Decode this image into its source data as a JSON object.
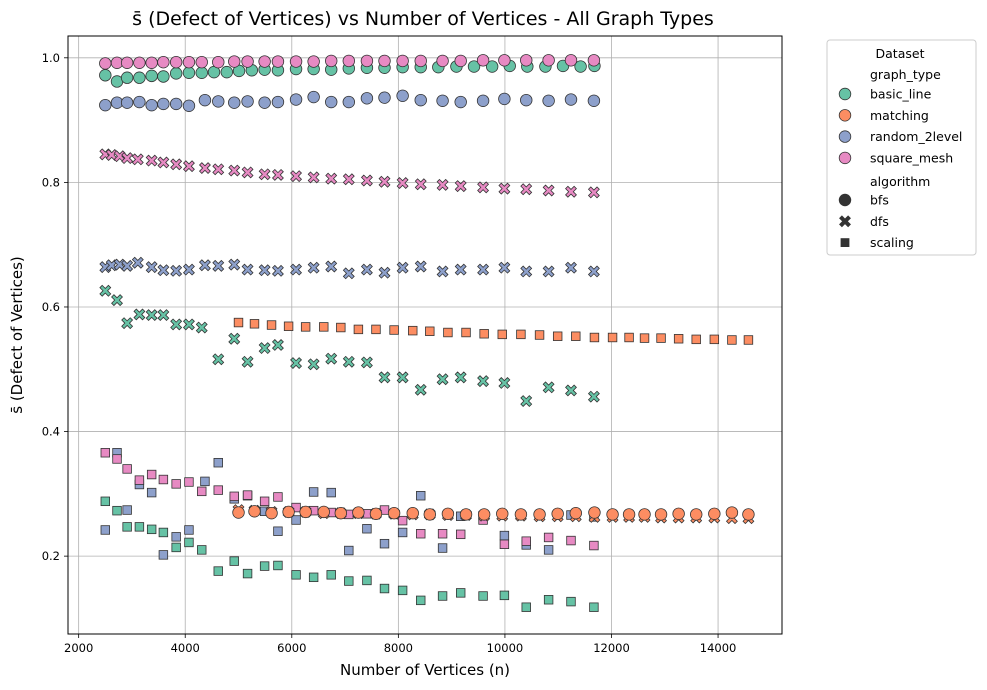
{
  "chart_data": {
    "type": "scatter",
    "title": "s̄ (Defect of Vertices) vs Number of Vertices - All Graph Types",
    "xlabel": "Number of Vertices (n)",
    "ylabel": "s̄ (Defect of Vertices)",
    "xlim": [
      1800,
      15200
    ],
    "ylim": [
      0.075,
      1.035
    ],
    "xticks": [
      2000,
      4000,
      6000,
      8000,
      10000,
      12000,
      14000
    ],
    "xtick_labels": [
      "2000",
      "4000",
      "6000",
      "8000",
      "10000",
      "12000",
      "14000"
    ],
    "yticks": [
      0.2,
      0.4,
      0.6,
      0.8,
      1.0
    ],
    "ytick_labels": [
      "0.2",
      "0.4",
      "0.6",
      "0.8",
      "1.0"
    ],
    "grid": true,
    "legend": {
      "title": "Dataset",
      "placement": "outside-top-right",
      "hue_title": "graph_type",
      "hue_entries": [
        {
          "label": "basic_line",
          "color": "#66c2a5"
        },
        {
          "label": "matching",
          "color": "#fc8d62"
        },
        {
          "label": "random_2level",
          "color": "#8da0cb"
        },
        {
          "label": "square_mesh",
          "color": "#e78ac3"
        }
      ],
      "style_title": "algorithm",
      "style_entries": [
        {
          "label": "bfs",
          "marker": "circle"
        },
        {
          "label": "dfs",
          "marker": "x"
        },
        {
          "label": "scaling",
          "marker": "square"
        }
      ]
    },
    "series": [
      {
        "graph_type": "basic_line",
        "algorithm": "bfs",
        "color": "#66c2a5",
        "marker": "circle",
        "x": [
          2500,
          2720,
          2910,
          3140,
          3370,
          3590,
          3830,
          4070,
          4310,
          4540,
          4780,
          5010,
          5250,
          5490,
          5740,
          6080,
          6410,
          6740,
          7070,
          7410,
          7740,
          8080,
          8420,
          8750,
          9090,
          9420,
          9760,
          10090,
          10420,
          10760,
          11090,
          11420,
          11680
        ],
        "y": [
          0.972,
          0.962,
          0.968,
          0.968,
          0.971,
          0.97,
          0.975,
          0.976,
          0.976,
          0.977,
          0.977,
          0.979,
          0.98,
          0.981,
          0.98,
          0.982,
          0.982,
          0.981,
          0.983,
          0.984,
          0.984,
          0.985,
          0.985,
          0.985,
          0.986,
          0.986,
          0.986,
          0.987,
          0.986,
          0.986,
          0.987,
          0.986,
          0.987
        ]
      },
      {
        "graph_type": "basic_line",
        "algorithm": "dfs",
        "color": "#66c2a5",
        "marker": "x",
        "x": [
          2500,
          2720,
          2910,
          3140,
          3370,
          3590,
          3830,
          4070,
          4310,
          4620,
          4920,
          5170,
          5490,
          5740,
          6080,
          6410,
          6740,
          7070,
          7410,
          7740,
          8080,
          8420,
          8830,
          9170,
          9590,
          9990,
          10400,
          10820,
          11240,
          11670
        ],
        "y": [
          0.626,
          0.611,
          0.574,
          0.588,
          0.587,
          0.587,
          0.572,
          0.572,
          0.567,
          0.516,
          0.549,
          0.512,
          0.534,
          0.539,
          0.51,
          0.508,
          0.517,
          0.512,
          0.511,
          0.487,
          0.487,
          0.467,
          0.484,
          0.487,
          0.481,
          0.478,
          0.449,
          0.471,
          0.466,
          0.456
        ]
      },
      {
        "graph_type": "basic_line",
        "algorithm": "scaling",
        "color": "#66c2a5",
        "marker": "square",
        "x": [
          2500,
          2720,
          2910,
          3140,
          3370,
          3590,
          3830,
          4070,
          4310,
          4620,
          4920,
          5170,
          5490,
          5740,
          6080,
          6410,
          6740,
          7070,
          7410,
          7740,
          8080,
          8420,
          8830,
          9170,
          9590,
          9990,
          10400,
          10820,
          11240,
          11670
        ],
        "y": [
          0.288,
          0.273,
          0.247,
          0.247,
          0.243,
          0.238,
          0.214,
          0.222,
          0.21,
          0.176,
          0.192,
          0.172,
          0.184,
          0.185,
          0.17,
          0.166,
          0.17,
          0.16,
          0.161,
          0.148,
          0.145,
          0.129,
          0.136,
          0.141,
          0.136,
          0.137,
          0.118,
          0.13,
          0.127,
          0.118
        ]
      },
      {
        "graph_type": "matching",
        "algorithm": "bfs",
        "color": "#fc8d62",
        "marker": "circle",
        "x": [
          5000,
          5300,
          5620,
          5940,
          6260,
          6600,
          6920,
          7250,
          7580,
          7920,
          8270,
          8590,
          8930,
          9270,
          9610,
          9950,
          10300,
          10650,
          10990,
          11330,
          11680,
          12020,
          12330,
          12620,
          12930,
          13260,
          13590,
          13930,
          14260,
          14570
        ],
        "y": [
          0.27,
          0.272,
          0.269,
          0.271,
          0.271,
          0.271,
          0.269,
          0.27,
          0.268,
          0.269,
          0.269,
          0.267,
          0.268,
          0.267,
          0.267,
          0.268,
          0.267,
          0.267,
          0.268,
          0.269,
          0.27,
          0.267,
          0.267,
          0.267,
          0.267,
          0.268,
          0.267,
          0.268,
          0.27,
          0.267
        ]
      },
      {
        "graph_type": "matching",
        "algorithm": "dfs",
        "color": "#fc8d62",
        "marker": "x",
        "x": [
          5000,
          5300,
          5620,
          5940,
          6260,
          6600,
          6920,
          7250,
          7580,
          7920,
          8270,
          8590,
          8930,
          9270,
          9610,
          9950,
          10300,
          10650,
          10990,
          11330,
          11680,
          12020,
          12330,
          12620,
          12930,
          13260,
          13590,
          13930,
          14260,
          14570
        ],
        "y": [
          0.274,
          0.273,
          0.271,
          0.271,
          0.271,
          0.269,
          0.269,
          0.269,
          0.268,
          0.268,
          0.267,
          0.267,
          0.266,
          0.266,
          0.265,
          0.265,
          0.265,
          0.264,
          0.264,
          0.264,
          0.263,
          0.263,
          0.263,
          0.263,
          0.262,
          0.262,
          0.262,
          0.262,
          0.261,
          0.261
        ]
      },
      {
        "graph_type": "matching",
        "algorithm": "scaling",
        "color": "#fc8d62",
        "marker": "square",
        "x": [
          5000,
          5300,
          5620,
          5940,
          6260,
          6600,
          6920,
          7250,
          7580,
          7920,
          8270,
          8590,
          8930,
          9270,
          9610,
          9950,
          10300,
          10650,
          10990,
          11330,
          11680,
          12020,
          12330,
          12620,
          12930,
          13260,
          13590,
          13930,
          14260,
          14570
        ],
        "y": [
          0.575,
          0.573,
          0.571,
          0.569,
          0.568,
          0.568,
          0.567,
          0.564,
          0.564,
          0.563,
          0.562,
          0.561,
          0.559,
          0.559,
          0.557,
          0.556,
          0.556,
          0.555,
          0.553,
          0.553,
          0.551,
          0.551,
          0.551,
          0.55,
          0.55,
          0.549,
          0.548,
          0.548,
          0.547,
          0.547
        ]
      },
      {
        "graph_type": "random_2level",
        "algorithm": "bfs",
        "color": "#8da0cb",
        "marker": "circle",
        "x": [
          2500,
          2720,
          2910,
          3140,
          3370,
          3590,
          3830,
          4070,
          4370,
          4620,
          4920,
          5170,
          5490,
          5740,
          6080,
          6410,
          6740,
          7070,
          7410,
          7740,
          8080,
          8420,
          8830,
          9170,
          9590,
          9990,
          10400,
          10820,
          11240,
          11670
        ],
        "y": [
          0.924,
          0.928,
          0.928,
          0.929,
          0.924,
          0.926,
          0.926,
          0.923,
          0.932,
          0.93,
          0.928,
          0.93,
          0.928,
          0.929,
          0.933,
          0.937,
          0.929,
          0.929,
          0.935,
          0.936,
          0.939,
          0.932,
          0.931,
          0.929,
          0.931,
          0.934,
          0.932,
          0.931,
          0.933,
          0.931
        ]
      },
      {
        "graph_type": "random_2level",
        "algorithm": "dfs",
        "color": "#8da0cb",
        "marker": "x",
        "x": [
          2500,
          2620,
          2770,
          2910,
          3110,
          3370,
          3590,
          3830,
          4070,
          4370,
          4620,
          4920,
          5170,
          5490,
          5740,
          6080,
          6410,
          6740,
          7070,
          7410,
          7740,
          8080,
          8420,
          8830,
          9170,
          9590,
          9990,
          10400,
          10820,
          11240,
          11670
        ],
        "y": [
          0.664,
          0.667,
          0.668,
          0.666,
          0.671,
          0.664,
          0.659,
          0.658,
          0.66,
          0.667,
          0.666,
          0.668,
          0.66,
          0.659,
          0.658,
          0.66,
          0.663,
          0.665,
          0.654,
          0.66,
          0.655,
          0.663,
          0.665,
          0.657,
          0.66,
          0.66,
          0.663,
          0.657,
          0.657,
          0.663,
          0.657
        ]
      },
      {
        "graph_type": "random_2level",
        "algorithm": "scaling",
        "color": "#8da0cb",
        "marker": "square",
        "x": [
          2500,
          2720,
          2910,
          3140,
          3370,
          3590,
          3830,
          4070,
          4370,
          4620,
          4920,
          5170,
          5490,
          5740,
          6080,
          6410,
          6740,
          7070,
          7410,
          7740,
          8080,
          8420,
          8830,
          9170,
          9590,
          9990,
          10400,
          10820,
          11240,
          11670
        ],
        "y": [
          0.242,
          0.366,
          0.274,
          0.315,
          0.302,
          0.202,
          0.231,
          0.242,
          0.32,
          0.35,
          0.292,
          0.297,
          0.272,
          0.24,
          0.258,
          0.303,
          0.302,
          0.209,
          0.244,
          0.22,
          0.238,
          0.297,
          0.213,
          0.264,
          0.265,
          0.233,
          0.218,
          0.21,
          0.266,
          0.263
        ]
      },
      {
        "graph_type": "square_mesh",
        "algorithm": "bfs",
        "color": "#e78ac3",
        "marker": "circle",
        "x": [
          2500,
          2720,
          2910,
          3140,
          3370,
          3590,
          3830,
          4070,
          4310,
          4620,
          4920,
          5170,
          5490,
          5740,
          6080,
          6410,
          6740,
          7070,
          7410,
          7740,
          8080,
          8420,
          8830,
          9170,
          9590,
          9990,
          10400,
          10820,
          11240,
          11670
        ],
        "y": [
          0.991,
          0.992,
          0.992,
          0.992,
          0.992,
          0.993,
          0.993,
          0.993,
          0.993,
          0.993,
          0.994,
          0.994,
          0.994,
          0.994,
          0.994,
          0.994,
          0.995,
          0.995,
          0.995,
          0.995,
          0.995,
          0.995,
          0.995,
          0.995,
          0.996,
          0.996,
          0.996,
          0.996,
          0.996,
          0.996
        ]
      },
      {
        "graph_type": "square_mesh",
        "algorithm": "dfs",
        "color": "#e78ac3",
        "marker": "x",
        "x": [
          2500,
          2620,
          2770,
          2910,
          3110,
          3370,
          3590,
          3830,
          4070,
          4370,
          4620,
          4920,
          5170,
          5490,
          5740,
          6080,
          6410,
          6740,
          7070,
          7410,
          7740,
          8080,
          8420,
          8830,
          9170,
          9590,
          9990,
          10400,
          10820,
          11240,
          11670
        ],
        "y": [
          0.845,
          0.844,
          0.842,
          0.839,
          0.837,
          0.835,
          0.832,
          0.829,
          0.826,
          0.823,
          0.821,
          0.819,
          0.816,
          0.813,
          0.812,
          0.81,
          0.808,
          0.806,
          0.805,
          0.803,
          0.801,
          0.799,
          0.797,
          0.796,
          0.794,
          0.792,
          0.79,
          0.789,
          0.787,
          0.785,
          0.784
        ]
      },
      {
        "graph_type": "square_mesh",
        "algorithm": "scaling",
        "color": "#e78ac3",
        "marker": "square",
        "x": [
          2500,
          2720,
          2910,
          3140,
          3370,
          3590,
          3830,
          4070,
          4310,
          4620,
          4920,
          5170,
          5490,
          5740,
          6080,
          6410,
          6740,
          7070,
          7410,
          7740,
          8080,
          8420,
          8830,
          9170,
          9590,
          9990,
          10400,
          10820,
          11240,
          11670
        ],
        "y": [
          0.366,
          0.356,
          0.34,
          0.322,
          0.331,
          0.323,
          0.316,
          0.319,
          0.304,
          0.306,
          0.296,
          0.298,
          0.288,
          0.295,
          0.278,
          0.273,
          0.27,
          0.267,
          0.268,
          0.274,
          0.257,
          0.236,
          0.236,
          0.235,
          0.258,
          0.219,
          0.224,
          0.23,
          0.225,
          0.217
        ]
      }
    ]
  }
}
